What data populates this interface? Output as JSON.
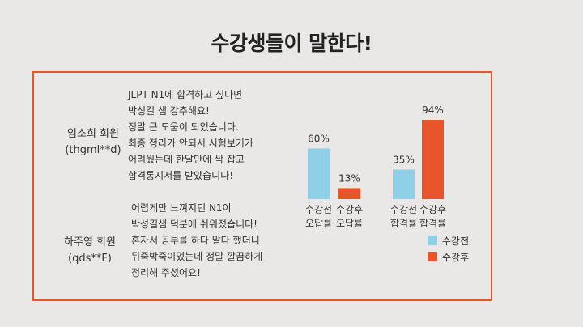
{
  "page": {
    "title": "수강생들이 말한다!"
  },
  "reviews": [
    {
      "name": "임소희 회원",
      "id": "(thgml**d)",
      "lines": [
        "JLPT N1에 합격하고 싶다면",
        "박성길 샘 강추해요!",
        "정말 큰 도움이 되었습니다.",
        "최종 정리가 안되서 시험보기가",
        "어려웠는데 한달만에 싹 잡고",
        "합격통지서를 받았습니다!"
      ]
    },
    {
      "name": "하주영 회원",
      "id": "(qds**F)",
      "lines": [
        "어렵게만 느껴지던 N1이",
        "박성길샘 덕분에 쉬워졌습니다!",
        "혼자서 공부를 하다 말다 했더니",
        "뒤죽박죽이었는데 정말 깔끔하게",
        "정리해 주셨어요!"
      ]
    }
  ],
  "chart_data": {
    "type": "bar",
    "categories": [
      "수강전 오답률",
      "수강후 오답률",
      "수강전 합격률",
      "수강후 합격률"
    ],
    "category_lines": [
      [
        "수강전",
        "오답률"
      ],
      [
        "수강후",
        "오답률"
      ],
      [
        "수강전",
        "합격률"
      ],
      [
        "수강후",
        "합격률"
      ]
    ],
    "values": [
      60,
      13,
      35,
      94
    ],
    "value_labels": [
      "60%",
      "13%",
      "35%",
      "94%"
    ],
    "bar_series": [
      "수강전",
      "수강후",
      "수강전",
      "수강후"
    ],
    "series_colors": {
      "수강전": "#8fd0e6",
      "수강후": "#e8552a"
    },
    "legend": [
      {
        "label": "수강전",
        "color": "#8fd0e6"
      },
      {
        "label": "수강후",
        "color": "#e8552a"
      }
    ],
    "ylim": [
      0,
      100
    ],
    "grid": false,
    "legend_position": "bottom-right"
  }
}
